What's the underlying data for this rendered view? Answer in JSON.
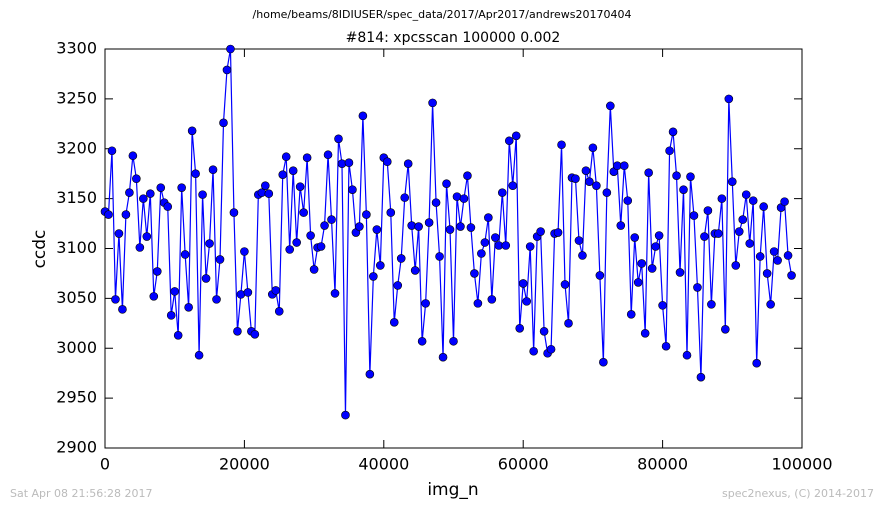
{
  "chart_data": {
    "type": "line",
    "suptitle": "/home/beams/8IDIUSER/spec_data/2017/Apr2017/andrews20170404",
    "title": "#814: xpcsscan 100000 0.002",
    "x_label": "img_n",
    "y_label": "ccdc",
    "footer_left": "Sat Apr 08 21:56:28 2017",
    "footer_right": "spec2nexus, (C) 2014-2017",
    "xlim": [
      0,
      100000
    ],
    "ylim": [
      2900,
      3300
    ],
    "xticks": [
      0,
      20000,
      40000,
      60000,
      80000,
      100000
    ],
    "yticks": [
      2900,
      2950,
      3000,
      3050,
      3100,
      3150,
      3200,
      3250,
      3300
    ],
    "color": "#0000ff",
    "x": [
      0,
      500,
      1000,
      1500,
      2000,
      2500,
      3000,
      3500,
      4000,
      4500,
      5000,
      5500,
      6000,
      6500,
      7000,
      7500,
      8000,
      8500,
      9000,
      9500,
      10000,
      10500,
      11000,
      11500,
      12000,
      12500,
      13000,
      13500,
      14000,
      14500,
      15000,
      15500,
      16000,
      16500,
      17000,
      17500,
      18000,
      18500,
      19000,
      19500,
      20000,
      20500,
      21000,
      21500,
      22000,
      22500,
      23000,
      23500,
      24000,
      24500,
      25000,
      25500,
      26000,
      26500,
      27000,
      27500,
      28000,
      28500,
      29000,
      29500,
      30000,
      30500,
      31000,
      31500,
      32000,
      32500,
      33000,
      33500,
      34000,
      34500,
      35000,
      35500,
      36000,
      36500,
      37000,
      37500,
      38000,
      38500,
      39000,
      39500,
      40000,
      40500,
      41000,
      41500,
      42000,
      42500,
      43000,
      43500,
      44000,
      44500,
      45000,
      45500,
      46000,
      46500,
      47000,
      47500,
      48000,
      48500,
      49000,
      49500,
      50000,
      50500,
      51000,
      51500,
      52000,
      52500,
      53000,
      53500,
      54000,
      54500,
      55000,
      55500,
      56000,
      56500,
      57000,
      57500,
      58000,
      58500,
      59000,
      59500,
      60000,
      60500,
      61000,
      61500,
      62000,
      62500,
      63000,
      63500,
      64000,
      64500,
      65000,
      65500,
      66000,
      66500,
      67000,
      67500,
      68000,
      68500,
      69000,
      69500,
      70000,
      70500,
      71000,
      71500,
      72000,
      72500,
      73000,
      73500,
      74000,
      74500,
      75000,
      75500,
      76000,
      76500,
      77000,
      77500,
      78000,
      78500,
      79000,
      79500,
      80000,
      80500,
      81000,
      81500,
      82000,
      82500,
      83000,
      83500,
      84000,
      84500,
      85000,
      85500,
      86000,
      86500,
      87000,
      87500,
      88000,
      88500,
      89000,
      89500,
      90000,
      90500,
      91000,
      91500,
      92000,
      92500,
      93000,
      93500,
      94000,
      94500,
      95000,
      95500,
      96000,
      96500,
      97000,
      97500,
      98000,
      98500
    ],
    "values": [
      3137,
      3134,
      3198,
      3049,
      3115,
      3039,
      3134,
      3156,
      3193,
      3170,
      3101,
      3150,
      3112,
      3155,
      3052,
      3077,
      3161,
      3146,
      3142,
      3033,
      3057,
      3013,
      3161,
      3094,
      3041,
      3218,
      3175,
      2993,
      3154,
      3070,
      3105,
      3179,
      3049,
      3089,
      3226,
      3279,
      3300,
      3136,
      3017,
      3054,
      3097,
      3056,
      3017,
      3014,
      3154,
      3156,
      3163,
      3155,
      3054,
      3058,
      3037,
      3174,
      3192,
      3099,
      3178,
      3106,
      3162,
      3136,
      3191,
      3113,
      3079,
      3101,
      3102,
      3123,
      3194,
      3129,
      3055,
      3210,
      3185,
      2933,
      3186,
      3159,
      3116,
      3122,
      3233,
      3134,
      2974,
      3072,
      3119,
      3083,
      3191,
      3187,
      3136,
      3026,
      3063,
      3090,
      3151,
      3185,
      3123,
      3078,
      3122,
      3007,
      3045,
      3126,
      3246,
      3146,
      3092,
      2991,
      3165,
      3119,
      3007,
      3152,
      3122,
      3150,
      3173,
      3121,
      3075,
      3045,
      3095,
      3106,
      3131,
      3049,
      3111,
      3103,
      3156,
      3103,
      3208,
      3163,
      3213,
      3020,
      3065,
      3047,
      3102,
      2997,
      3112,
      3117,
      3017,
      2995,
      2999,
      3115,
      3116,
      3204,
      3064,
      3025,
      3171,
      3170,
      3108,
      3093,
      3178,
      3167,
      3201,
      3163,
      3073,
      2986,
      3156,
      3243,
      3177,
      3183,
      3123,
      3183,
      3148,
      3034,
      3111,
      3066,
      3085,
      3015,
      3176,
      3080,
      3102,
      3113,
      3043,
      3002,
      3198,
      3217,
      3173,
      3076,
      3159,
      2993,
      3172,
      3133,
      3061,
      2971,
      3112,
      3138,
      3044,
      3115,
      3115,
      3150,
      3019,
      3250,
      3167,
      3083,
      3117,
      3129,
      3154,
      3105,
      3148,
      2985,
      3092,
      3142,
      3075,
      3044,
      3097,
      3088,
      3141,
      3147,
      3093,
      3073
    ]
  }
}
